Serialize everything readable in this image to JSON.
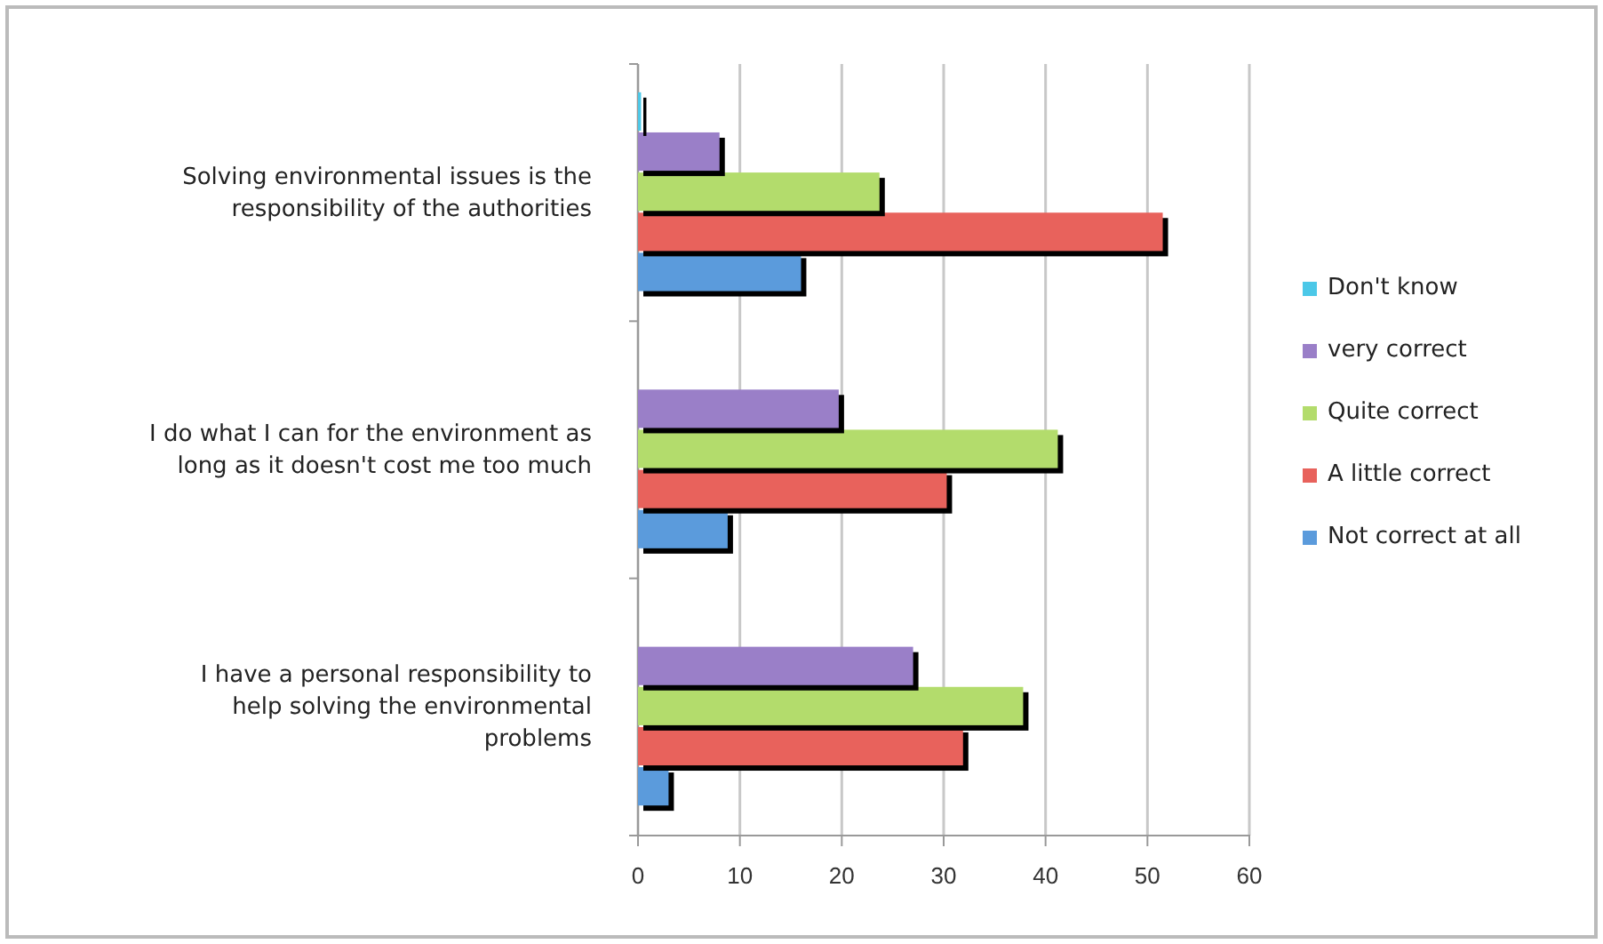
{
  "chart_data": {
    "type": "bar",
    "orientation": "horizontal",
    "categories": [
      "Solving environmental issues is the responsibility of the authorities",
      "I do what I can for the environment as long as it doesn't cost me too much",
      "I have a personal responsibility to help solving the environmental problems"
    ],
    "series": [
      {
        "name": "Not correct at all",
        "color": "#5b9bdc",
        "values": [
          16,
          8.8,
          3
        ]
      },
      {
        "name": "A little correct",
        "color": "#e8625c",
        "values": [
          51.5,
          30.3,
          31.9
        ]
      },
      {
        "name": "Quite correct",
        "color": "#b3dc6c",
        "values": [
          23.7,
          41.2,
          37.8
        ]
      },
      {
        "name": "very correct",
        "color": "#9a7fc8",
        "values": [
          8,
          19.7,
          27
        ]
      },
      {
        "name": "Don't know",
        "color": "#4cc8e8",
        "values": [
          0.3,
          0,
          0
        ]
      }
    ],
    "xlim": [
      0,
      60
    ],
    "xticks": [
      0,
      10,
      20,
      30,
      40,
      50,
      60
    ],
    "grid": "x",
    "legend": "right"
  }
}
